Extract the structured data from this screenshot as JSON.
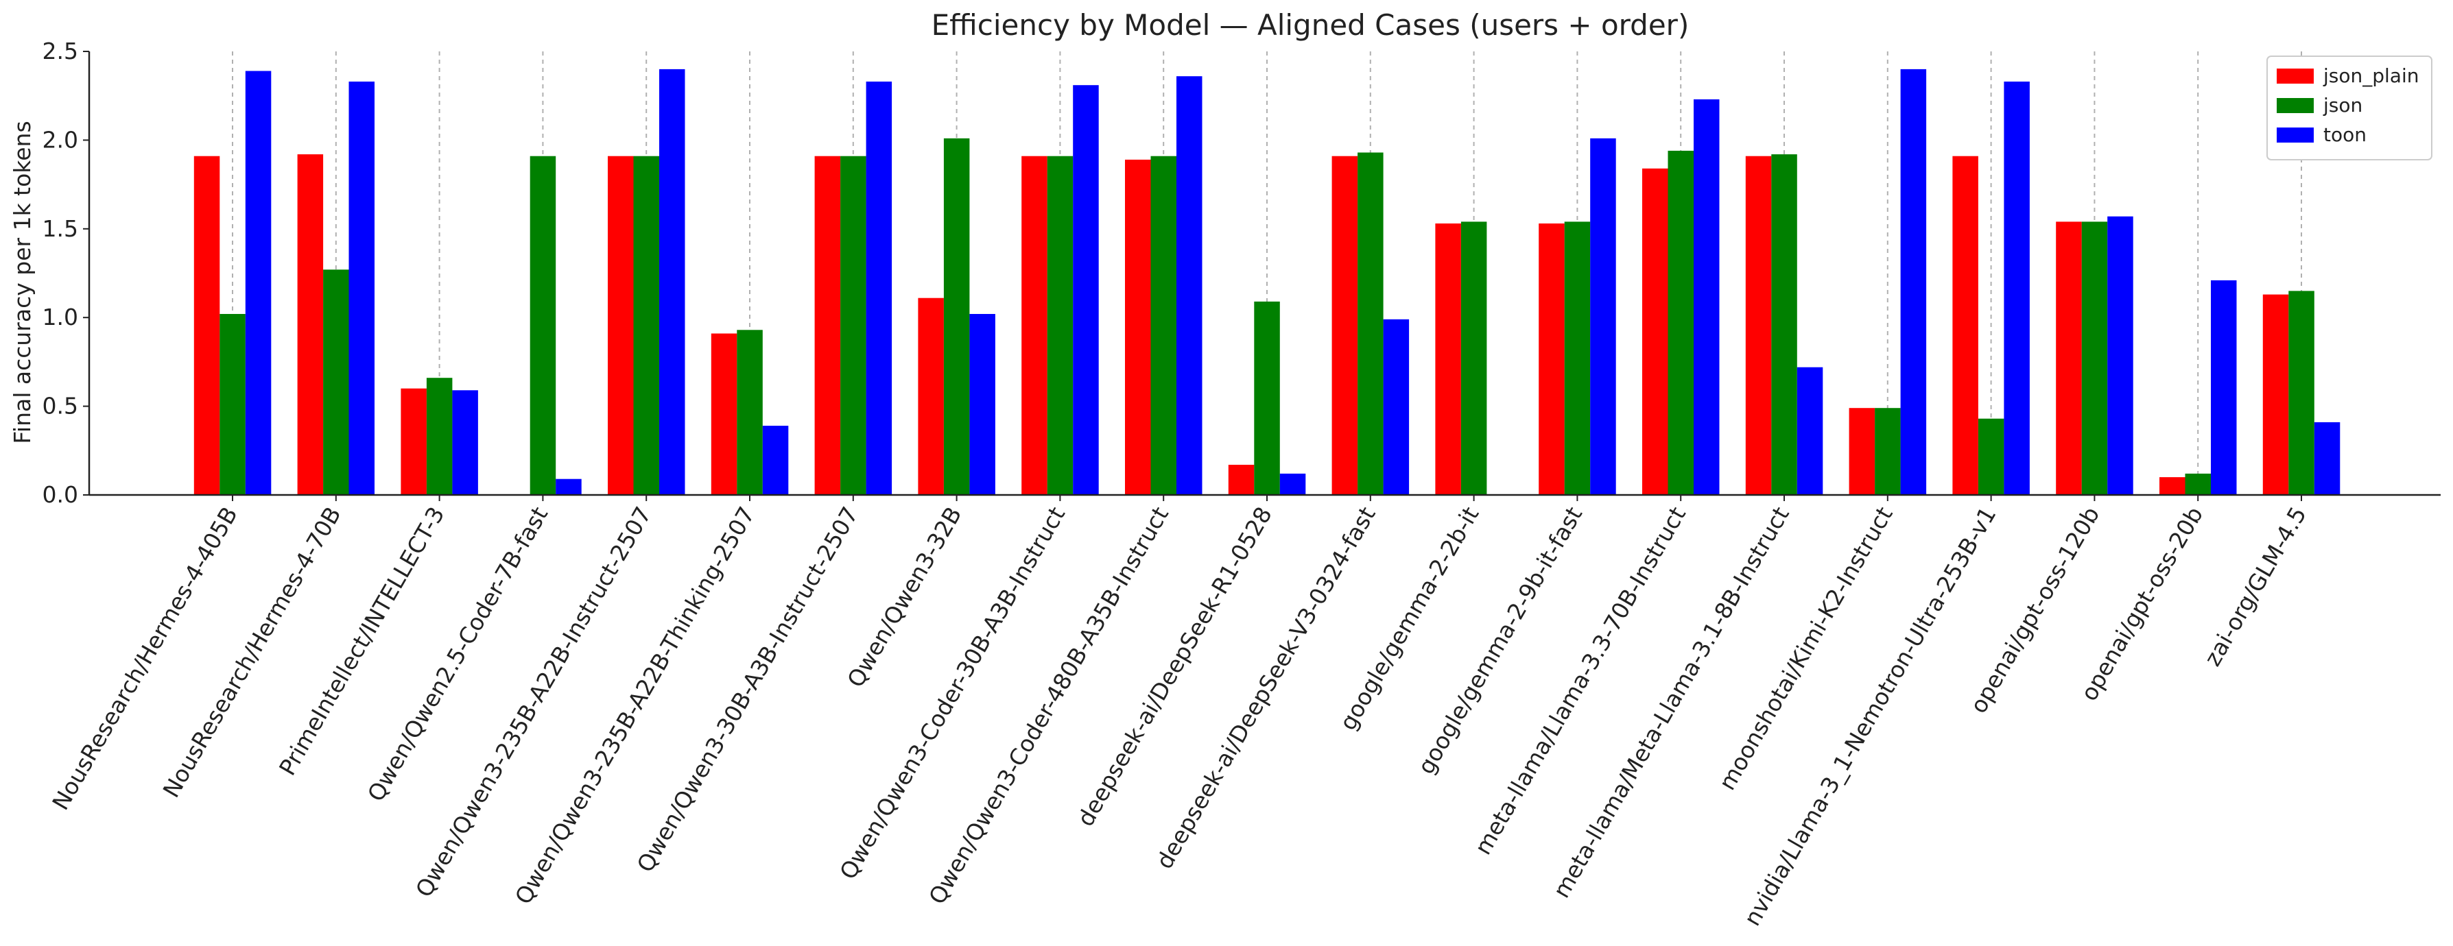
{
  "chart_data": {
    "type": "bar",
    "title": "Efficiency by Model — Aligned Cases (users + order)",
    "xlabel": "",
    "ylabel": "Final accuracy per 1k tokens",
    "ylim": [
      0,
      2.5
    ],
    "yticks": [
      "0.0",
      "0.5",
      "1.0",
      "1.5",
      "2.0",
      "2.5"
    ],
    "ytick_values": [
      0,
      0.5,
      1.0,
      1.5,
      2.0,
      2.5
    ],
    "grid": "vertical dashed at categories",
    "legend_position": "top-right",
    "categories": [
      "NousResearch/Hermes-4-405B",
      "NousResearch/Hermes-4-70B",
      "PrimeIntellect/INTELLECT-3",
      "Qwen/Qwen2.5-Coder-7B-fast",
      "Qwen/Qwen3-235B-A22B-Instruct-2507",
      "Qwen/Qwen3-235B-A22B-Thinking-2507",
      "Qwen/Qwen3-30B-A3B-Instruct-2507",
      "Qwen/Qwen3-32B",
      "Qwen/Qwen3-Coder-30B-A3B-Instruct",
      "Qwen/Qwen3-Coder-480B-A35B-Instruct",
      "deepseek-ai/DeepSeek-R1-0528",
      "deepseek-ai/DeepSeek-V3-0324-fast",
      "google/gemma-2-2b-it",
      "google/gemma-2-9b-it-fast",
      "meta-llama/Llama-3.3-70B-Instruct",
      "meta-llama/Meta-Llama-3.1-8B-Instruct",
      "moonshotai/Kimi-K2-Instruct",
      "nvidia/Llama-3_1-Nemotron-Ultra-253B-v1",
      "openai/gpt-oss-120b",
      "openai/gpt-oss-20b",
      "zai-org/GLM-4.5"
    ],
    "series": [
      {
        "name": "json_plain",
        "color": "#ff0000",
        "values": [
          1.91,
          1.92,
          0.6,
          0.0,
          1.91,
          0.91,
          1.91,
          1.11,
          1.91,
          1.89,
          0.17,
          1.91,
          1.53,
          1.53,
          1.84,
          1.91,
          0.49,
          1.91,
          1.54,
          0.1,
          1.13
        ]
      },
      {
        "name": "json",
        "color": "#008000",
        "values": [
          1.02,
          1.27,
          0.66,
          1.91,
          1.91,
          0.93,
          1.91,
          2.01,
          1.91,
          1.91,
          1.09,
          1.93,
          1.54,
          1.54,
          1.94,
          1.92,
          0.49,
          0.43,
          1.54,
          0.12,
          1.15
        ]
      },
      {
        "name": "toon",
        "color": "#0000ff",
        "values": [
          2.39,
          2.33,
          0.59,
          0.09,
          2.4,
          0.39,
          2.33,
          1.02,
          2.31,
          2.36,
          0.12,
          0.99,
          0.0,
          2.01,
          2.23,
          0.72,
          2.4,
          2.33,
          1.57,
          1.21,
          0.41
        ]
      }
    ]
  }
}
